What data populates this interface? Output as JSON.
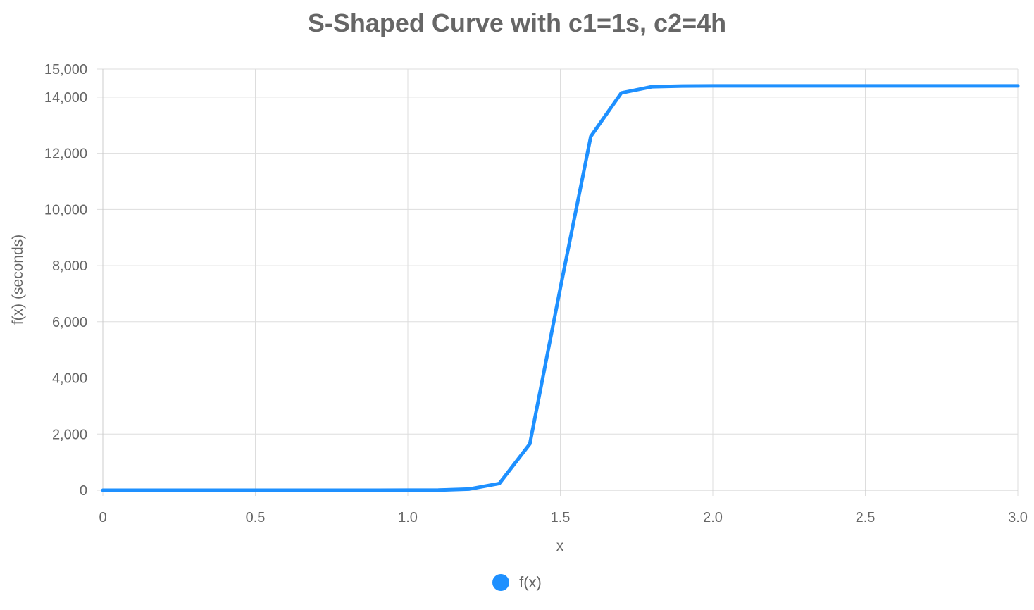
{
  "chart_data": {
    "type": "line",
    "title": "S-Shaped Curve with c1=1s, c2=4h",
    "xlabel": "x",
    "ylabel": "f(x) (seconds)",
    "xlim": [
      0,
      3
    ],
    "ylim": [
      0,
      15000
    ],
    "x_ticks": [
      0,
      0.5,
      1.0,
      1.5,
      2.0,
      2.5,
      3.0
    ],
    "x_tick_labels": [
      "0",
      "0.5",
      "1.0",
      "1.5",
      "2.0",
      "2.5",
      "3.0"
    ],
    "y_ticks": [
      0,
      2000,
      4000,
      6000,
      8000,
      10000,
      12000,
      14000,
      15000
    ],
    "y_tick_labels": [
      "0",
      "2,000",
      "4,000",
      "6,000",
      "8,000",
      "10,000",
      "12,000",
      "14,000",
      "15,000"
    ],
    "grid": true,
    "legend_position": "bottom",
    "series": [
      {
        "name": "f(x)",
        "color": "#1e90ff",
        "x": [
          0,
          0.1,
          0.2,
          0.3,
          0.4,
          0.5,
          0.6,
          0.7,
          0.8,
          0.9,
          1.0,
          1.1,
          1.2,
          1.3,
          1.4,
          1.5,
          1.6,
          1.7,
          1.8,
          1.9,
          2.0,
          2.1,
          2.2,
          2.3,
          2.4,
          2.5,
          2.6,
          2.7,
          2.8,
          2.9,
          3.0
        ],
        "values": [
          1,
          1,
          1,
          1,
          1,
          1,
          1,
          1,
          1,
          1,
          2,
          6,
          40,
          240,
          1650,
          7200,
          12600,
          14150,
          14370,
          14395,
          14400,
          14400,
          14400,
          14400,
          14400,
          14400,
          14400,
          14400,
          14400,
          14400,
          14400
        ]
      }
    ]
  }
}
